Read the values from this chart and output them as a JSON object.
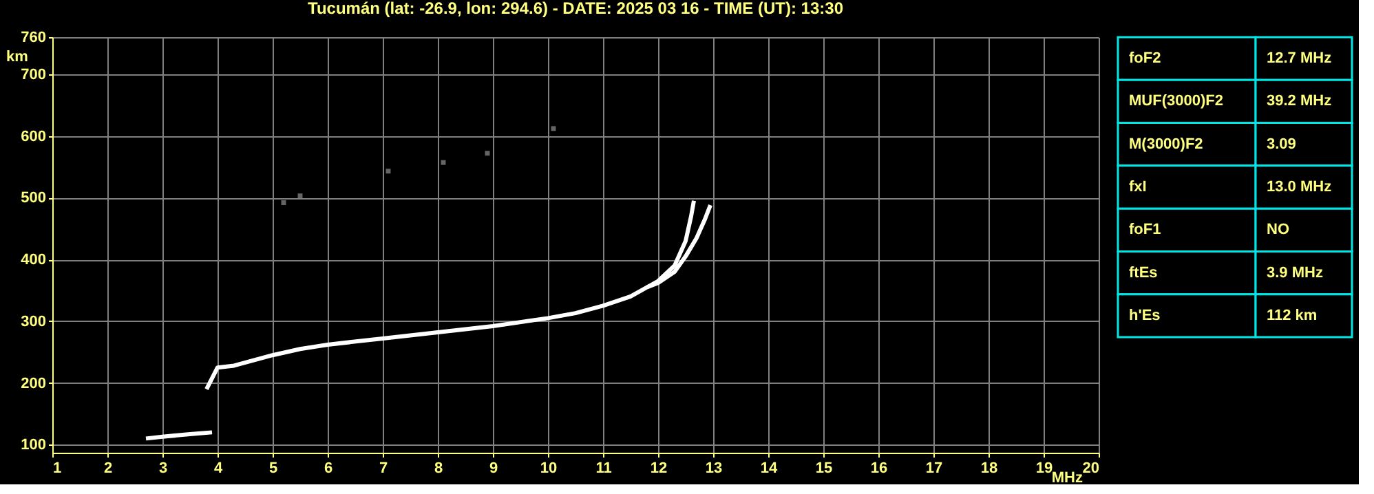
{
  "chart_data": [
    {
      "type": "line",
      "title": "Tucumán (lat: -26.9, lon: 294.6) - DATE: 2025 03 16 - TIME (UT): 13:30",
      "xlabel": "MHz",
      "ylabel": "km",
      "xlim": [
        1,
        20
      ],
      "ylim": [
        87,
        760
      ],
      "xticks": [
        1,
        2,
        3,
        4,
        5,
        6,
        7,
        8,
        9,
        10,
        11,
        12,
        13,
        14,
        15,
        16,
        17,
        18,
        19,
        20
      ],
      "yticks": [
        100,
        200,
        300,
        400,
        500,
        600,
        700,
        760
      ],
      "grid": true,
      "line_style": "solid",
      "series": [
        {
          "type": "line",
          "color": "#ffffff",
          "x": [
            3.8,
            4.0,
            4.3,
            5.0,
            5.5,
            6.0,
            7.0,
            8.0,
            9.0,
            10.0,
            10.5,
            11.0,
            11.5,
            12.0,
            12.3,
            12.5,
            12.6,
            12.65
          ],
          "values": [
            190,
            225,
            228,
            245,
            255,
            262,
            272,
            282,
            292,
            305,
            313,
            325,
            340,
            365,
            390,
            430,
            470,
            495
          ]
        },
        {
          "type": "line",
          "color": "#ffffff",
          "x": [
            11.8,
            12.0,
            12.3,
            12.5,
            12.7,
            12.85,
            12.95
          ],
          "values": [
            355,
            362,
            380,
            405,
            435,
            465,
            488
          ]
        },
        {
          "type": "line",
          "color": "#ffffff",
          "x": [
            2.7,
            3.0,
            3.5,
            3.9
          ],
          "values": [
            110,
            113,
            117,
            120
          ]
        },
        {
          "type": "scatter",
          "marker": "square",
          "color": "#909090",
          "x": [
            5.2,
            5.5,
            7.1,
            8.1,
            8.9,
            10.1
          ],
          "values": [
            492,
            503,
            543,
            557,
            572,
            612
          ]
        }
      ]
    },
    {
      "type": "other",
      "annotations": [
        "foF2",
        "12.7 MHz",
        "MUF(3000)F2",
        "39.2 MHz",
        "M(3000)F2",
        "3.09",
        "fxI",
        "13.0 MHz",
        "foF1",
        "NO",
        "ftEs",
        "3.9 MHz",
        "h'Es",
        "112 km"
      ]
    }
  ]
}
